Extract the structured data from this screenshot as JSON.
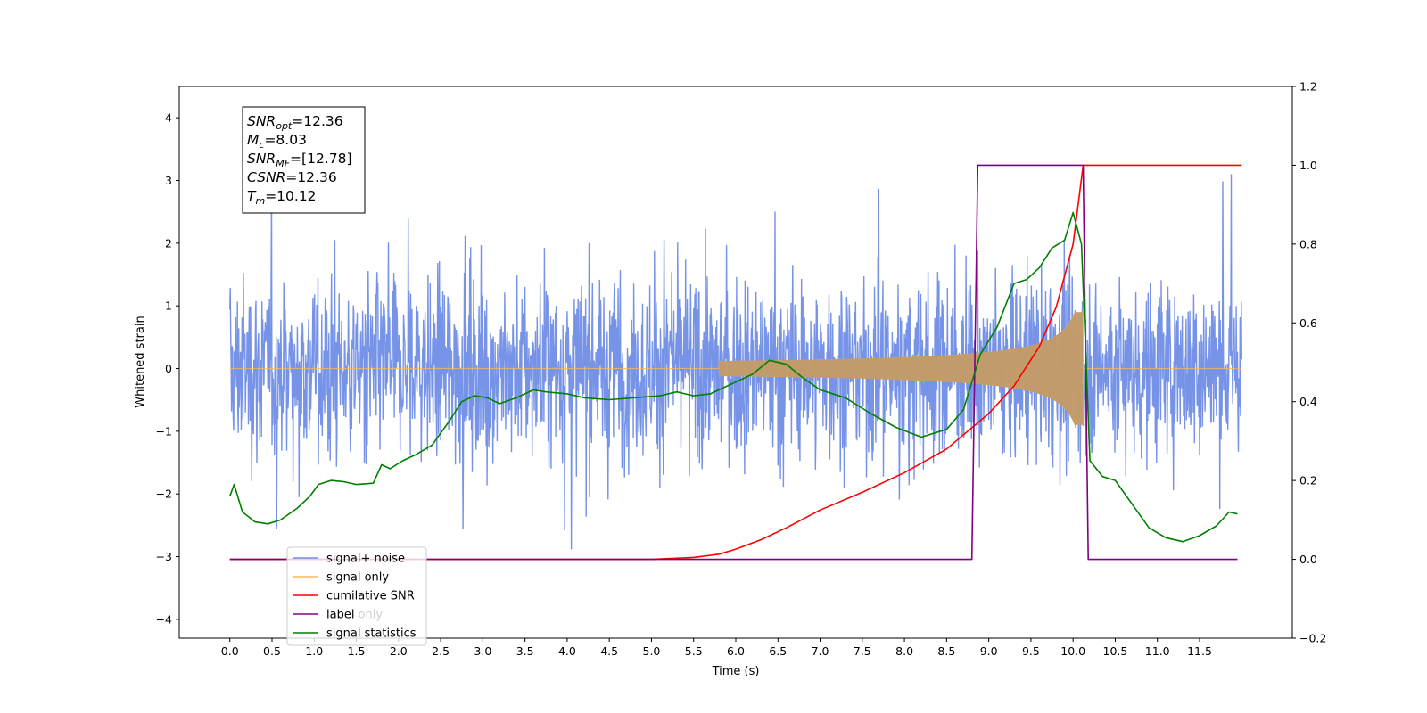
{
  "chart_data": {
    "type": "line",
    "xlabel": "Time (s)",
    "ylabel": "Whitened strain",
    "xlim": [
      -0.6,
      12.6
    ],
    "ylim": [
      -4.3,
      4.5
    ],
    "y2lim": [
      -0.2,
      1.2
    ],
    "x_ticks": [
      "0.0",
      "0.5",
      "1.0",
      "1.5",
      "2.0",
      "2.5",
      "3.0",
      "3.5",
      "4.0",
      "4.5",
      "5.0",
      "5.5",
      "6.0",
      "6.5",
      "7.0",
      "7.5",
      "8.0",
      "8.5",
      "9.0",
      "9.5",
      "10.0",
      "10.5",
      "11.0",
      "11.5"
    ],
    "y_ticks": [
      "−4",
      "−3",
      "−2",
      "−1",
      "0",
      "1",
      "2",
      "3",
      "4"
    ],
    "y2_ticks": [
      "−0.2",
      "0.0",
      "0.2",
      "0.4",
      "0.6",
      "0.8",
      "1.0",
      "1.2"
    ],
    "info_box": [
      {
        "main": "SNR",
        "sub": "opt",
        "rest": "=12.36"
      },
      {
        "main": "M",
        "sub": "c",
        "rest": "=8.03"
      },
      {
        "main": "SNR",
        "sub": "MF",
        "rest": "=[12.78]"
      },
      {
        "main": "CSNR",
        "sub": "",
        "rest": "=12.36"
      },
      {
        "main": "T",
        "sub": "m",
        "rest": "=10.12"
      }
    ],
    "legend": [
      "signal+ noise",
      "signal only",
      "cumilative SNR",
      "label",
      "signal statistics"
    ],
    "legend_hidden_text": "label only",
    "legend_location": "lower-left",
    "colors": {
      "signal_noise": "#6f8de6",
      "signal_only": "#ffb84d",
      "cumulative_snr": "#ff0000",
      "label": "#800080",
      "statistics": "#008000"
    },
    "series": [
      {
        "name": "signal+ noise",
        "axis": "left",
        "description_values": "whitened strain, noise spanning about -3.7 to 4.1 over t = 0 to 12",
        "t_range": [
          0.0,
          12.0
        ]
      },
      {
        "name": "signal only",
        "axis": "left",
        "chirp_start_t": 5.8,
        "peak_t": 10.12,
        "peak_amplitude": 0.9,
        "t_range": [
          0.0,
          12.0
        ]
      },
      {
        "name": "cumilative SNR",
        "axis": "right",
        "x": [
          0.0,
          5.0,
          5.5,
          5.8,
          6.0,
          6.3,
          6.6,
          7.0,
          7.5,
          8.0,
          8.5,
          9.0,
          9.3,
          9.6,
          9.8,
          10.0,
          10.12,
          12.0
        ],
        "y": [
          0.0,
          0.0,
          0.005,
          0.013,
          0.026,
          0.05,
          0.08,
          0.125,
          0.17,
          0.22,
          0.28,
          0.37,
          0.44,
          0.54,
          0.64,
          0.8,
          1.0,
          1.0
        ]
      },
      {
        "name": "label",
        "axis": "right",
        "x": [
          0.0,
          8.8,
          8.87,
          10.12,
          10.18,
          11.95
        ],
        "y": [
          0.0,
          0.0,
          1.0,
          1.0,
          0.0,
          0.0
        ]
      },
      {
        "name": "signal statistics",
        "axis": "right",
        "x": [
          0.0,
          0.05,
          0.15,
          0.3,
          0.45,
          0.6,
          0.8,
          0.95,
          1.05,
          1.2,
          1.35,
          1.5,
          1.7,
          1.8,
          1.9,
          2.05,
          2.2,
          2.4,
          2.6,
          2.75,
          2.9,
          3.05,
          3.2,
          3.4,
          3.6,
          3.75,
          4.0,
          4.2,
          4.5,
          4.8,
          5.1,
          5.3,
          5.5,
          5.7,
          5.8,
          5.95,
          6.2,
          6.4,
          6.6,
          6.8,
          7.0,
          7.3,
          7.6,
          7.9,
          8.2,
          8.5,
          8.7,
          8.9,
          9.1,
          9.3,
          9.45,
          9.6,
          9.75,
          9.9,
          10.0,
          10.1,
          10.2,
          10.35,
          10.5,
          10.7,
          10.9,
          11.1,
          11.3,
          11.5,
          11.7,
          11.85,
          11.95
        ],
        "y": [
          0.16,
          0.19,
          0.12,
          0.095,
          0.09,
          0.1,
          0.13,
          0.16,
          0.19,
          0.2,
          0.197,
          0.19,
          0.193,
          0.24,
          0.23,
          0.25,
          0.265,
          0.29,
          0.35,
          0.4,
          0.415,
          0.41,
          0.395,
          0.41,
          0.43,
          0.425,
          0.42,
          0.41,
          0.405,
          0.41,
          0.415,
          0.425,
          0.415,
          0.42,
          0.43,
          0.445,
          0.47,
          0.505,
          0.495,
          0.46,
          0.43,
          0.41,
          0.37,
          0.335,
          0.31,
          0.33,
          0.38,
          0.52,
          0.59,
          0.7,
          0.71,
          0.74,
          0.79,
          0.81,
          0.88,
          0.8,
          0.25,
          0.21,
          0.2,
          0.14,
          0.08,
          0.055,
          0.045,
          0.06,
          0.085,
          0.12,
          0.115
        ]
      }
    ]
  }
}
